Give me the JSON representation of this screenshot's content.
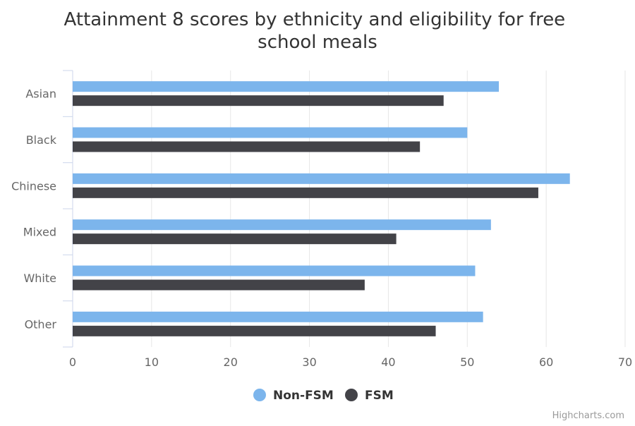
{
  "chart_data": {
    "type": "bar",
    "orientation": "horizontal",
    "title": "Attainment 8 scores by ethnicity and eligibility for free school meals",
    "categories": [
      "Asian",
      "Black",
      "Chinese",
      "Mixed",
      "White",
      "Other"
    ],
    "series": [
      {
        "name": "Non-FSM",
        "color": "#7cb5ec",
        "values": [
          54,
          50,
          63,
          53,
          51,
          52
        ]
      },
      {
        "name": "FSM",
        "color": "#434348",
        "values": [
          47,
          44,
          59,
          41,
          37,
          46
        ]
      }
    ],
    "xlim": [
      0,
      70
    ],
    "ticks": [
      "0",
      "10",
      "20",
      "30",
      "40",
      "50",
      "60",
      "70"
    ],
    "grid": true,
    "legend_position": "bottom-center",
    "credits": "Highcharts.com"
  }
}
